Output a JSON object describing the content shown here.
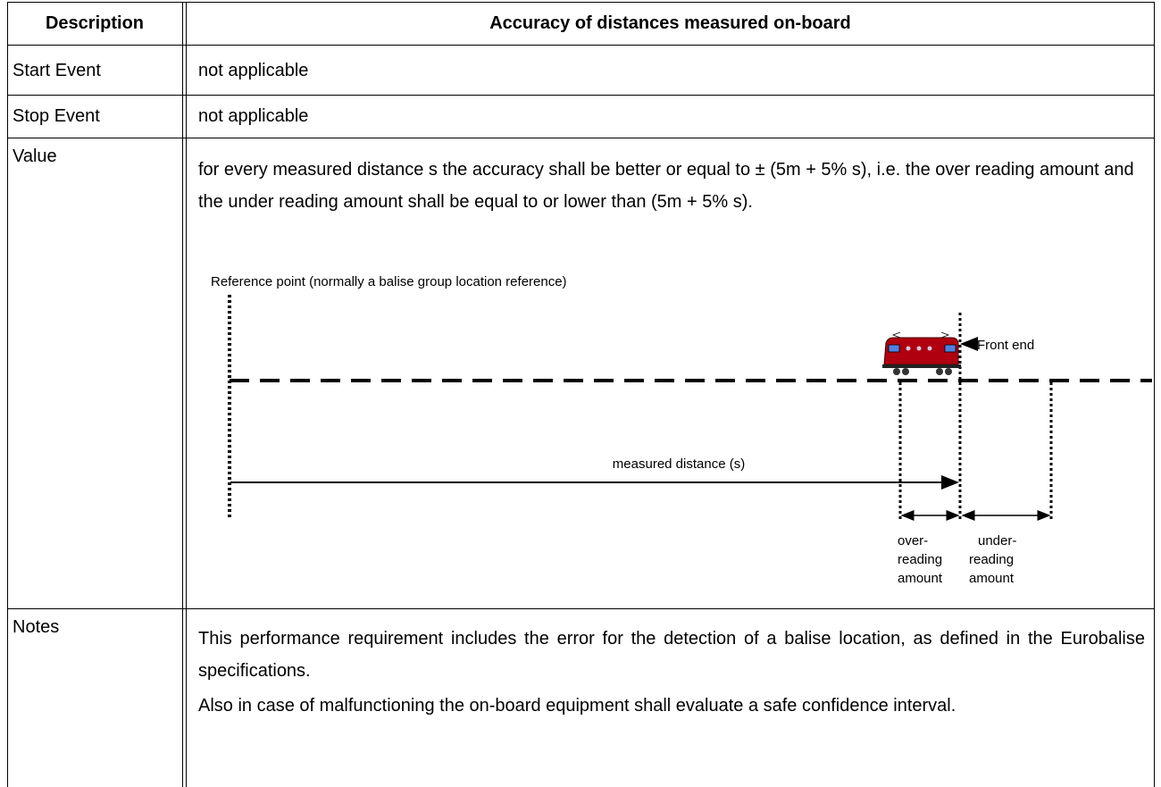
{
  "header": {
    "col1": "Description",
    "col2": "Accuracy of distances measured on-board"
  },
  "rows": [
    {
      "label": "Start Event",
      "content": [
        "not applicable"
      ]
    },
    {
      "label": "Stop Event",
      "content": [
        "not applicable"
      ]
    },
    {
      "label": "Value",
      "content": [
        "for every measured distance s the accuracy shall be better or equal to ± (5m + 5% s), i.e. the over reading amount and the under reading amount shall be equal to or lower than (5m + 5% s)."
      ]
    },
    {
      "label": "Notes",
      "content": [
        "This performance requirement includes the error for the detection of a balise location, as defined in the Eurobalise specifications.",
        "Also in case of malfunctioning the on-board equipment shall evaluate a safe confidence interval."
      ]
    }
  ],
  "diagram": {
    "reference_label": "Reference point (normally a balise group location reference)",
    "front_end_label": "Front end",
    "measured_label": "measured distance (s)",
    "over_label": [
      "over-",
      "reading",
      "amount"
    ],
    "under_label": [
      "under-",
      "reading",
      "amount"
    ]
  }
}
